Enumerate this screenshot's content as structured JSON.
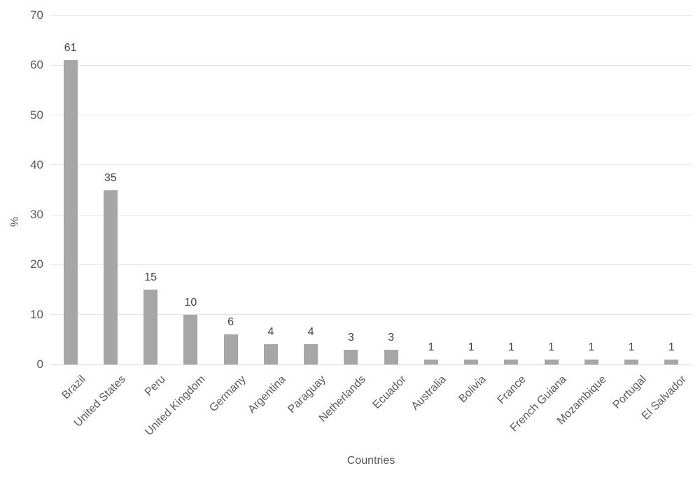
{
  "chart_data": {
    "type": "bar",
    "title": "",
    "categories": [
      "Brazil",
      "United States",
      "Peru",
      "United Kingdom",
      "Germany",
      "Argentina",
      "Paraguay",
      "Netherlands",
      "Ecuador",
      "Australia",
      "Bolivia",
      "France",
      "French Guiana",
      "Mozambique",
      "Portugal",
      "El Salvador"
    ],
    "values": [
      61,
      35,
      15,
      10,
      6,
      4,
      4,
      3,
      3,
      1,
      1,
      1,
      1,
      1,
      1,
      1
    ],
    "xlabel": "Countries",
    "ylabel": "%",
    "ylim": [
      0,
      70
    ],
    "ytick_step": 10,
    "ytick_labels": [
      "0",
      "10",
      "20",
      "30",
      "40",
      "50",
      "60",
      "70"
    ],
    "grid": true,
    "legend_position": "none",
    "colors": {
      "bar": "#a6a6a6",
      "gridline": "#e4e4e4",
      "baseline": "#d9d9d9",
      "axis_text": "#595959",
      "value_label_text": "#404040"
    }
  }
}
